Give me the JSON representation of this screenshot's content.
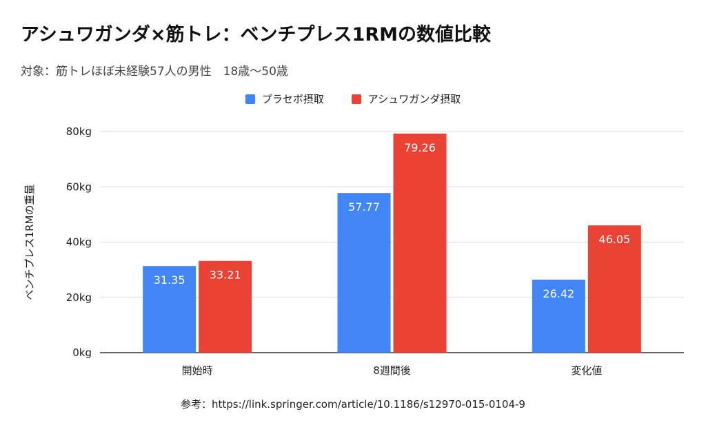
{
  "chart_data": {
    "type": "bar",
    "title": "アシュワガンダ×筋トレ：ベンチプレス1RMの数値比較",
    "subtitle": "対象：筋トレほぼ未経験57人の男性　18歳〜50歳",
    "ylabel": "ベンチプレス1RMの重量",
    "xlabel": "",
    "categories": [
      "開始時",
      "8週間後",
      "変化値"
    ],
    "series": [
      {
        "name": "プラセボ摂取",
        "color": "#4285f4",
        "values": [
          31.35,
          57.77,
          26.42
        ]
      },
      {
        "name": "アシュワガンダ摂取",
        "color": "#ea4335",
        "values": [
          33.21,
          79.26,
          46.05
        ]
      }
    ],
    "ylim": [
      0,
      80
    ],
    "yticks": [
      0,
      20,
      40,
      60,
      80
    ],
    "ytick_suffix": "kg",
    "grid": true,
    "legend_position": "top-center",
    "data_labels": true
  },
  "source_note": "参考：https://link.springer.com/article/10.1186/s12970-015-0104-9"
}
